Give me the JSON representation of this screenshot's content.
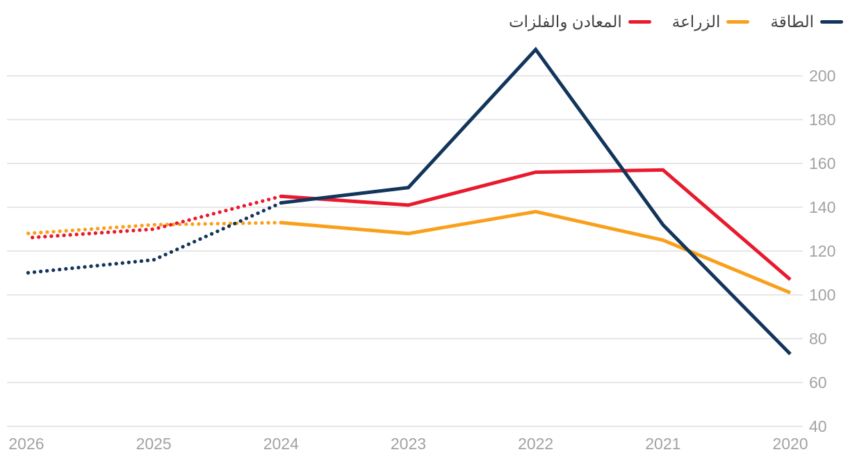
{
  "legend": {
    "items": [
      {
        "label": "الطاقة",
        "color": "#12355B"
      },
      {
        "label": "الزراعة",
        "color": "#F9A01B"
      },
      {
        "label": "المعادن والفلزات",
        "color": "#E9192E"
      }
    ]
  },
  "chart_data": {
    "type": "line",
    "title": "",
    "xlabel": "",
    "ylabel": "",
    "direction": "rtl",
    "x": [
      2020,
      2021,
      2022,
      2023,
      2024,
      2025,
      2026
    ],
    "x_tick_labels_displayed_left_to_right": [
      "2026",
      "2025",
      "2024",
      "2023",
      "2022",
      "2021",
      "2020"
    ],
    "series": [
      {
        "name": "الطاقة",
        "color": "#12355B",
        "values": [
          73,
          132,
          212,
          149,
          142,
          116,
          110
        ],
        "forecast_from_year": 2024,
        "forecast_style": "dotted"
      },
      {
        "name": "الزراعة",
        "color": "#F9A01B",
        "values": [
          101,
          125,
          138,
          128,
          133,
          132,
          128
        ],
        "forecast_from_year": 2024,
        "forecast_style": "dotted"
      },
      {
        "name": "المعادن والفلزات",
        "color": "#E9192E",
        "values": [
          107,
          157,
          156,
          141,
          145,
          130,
          126
        ],
        "forecast_from_year": 2024,
        "forecast_style": "dotted"
      }
    ],
    "y_ticks": [
      40,
      60,
      80,
      100,
      120,
      140,
      160,
      180,
      200
    ],
    "ylim": [
      40,
      213
    ],
    "y_axis_side": "right",
    "grid": "horizontal",
    "legend_position": "top-right"
  },
  "colors": {
    "grid": "#E7E7E7",
    "axis_label": "#A2A2A2",
    "legend_text": "#414141",
    "background": "#FFFFFF"
  }
}
